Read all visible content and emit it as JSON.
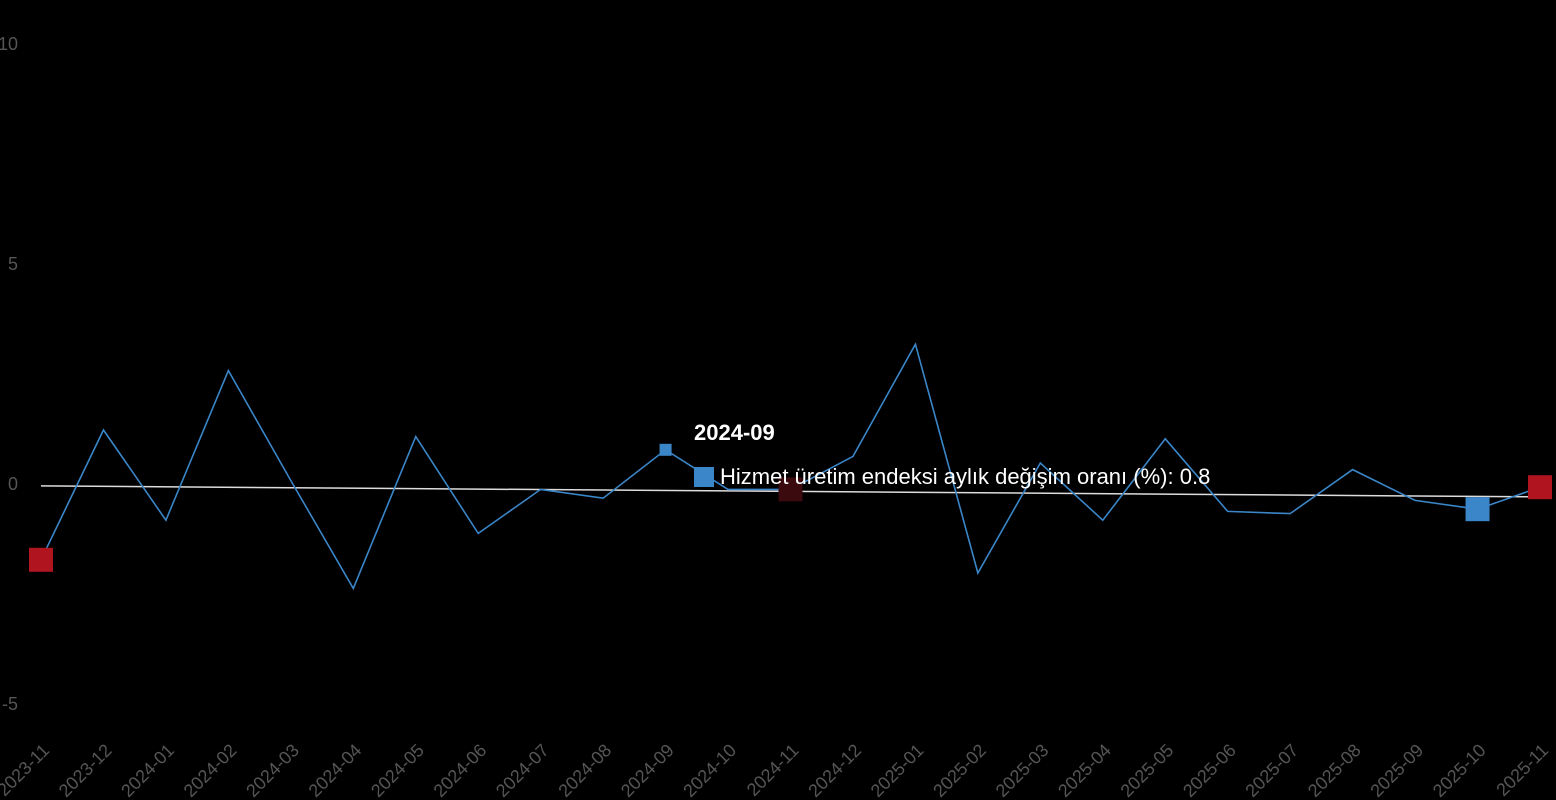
{
  "chart_data": {
    "type": "line",
    "categories": [
      "2023-11",
      "2023-12",
      "2024-01",
      "2024-02",
      "2024-03",
      "2024-04",
      "2024-05",
      "2024-06",
      "2024-07",
      "2024-08",
      "2024-09",
      "2024-10",
      "2024-11",
      "2024-12",
      "2025-01",
      "2025-02",
      "2025-03",
      "2025-04",
      "2025-05",
      "2025-06",
      "2025-07",
      "2025-08",
      "2025-09",
      "2025-10",
      "2025-11"
    ],
    "series": [
      {
        "name": "Hizmet üretim endeksi aylık değişim oranı (%)",
        "color": "#3a86c8",
        "values": [
          -1.7,
          1.25,
          -0.8,
          2.6,
          0.1,
          -2.35,
          1.1,
          -1.1,
          -0.1,
          -0.3,
          0.8,
          -0.1,
          -0.1,
          0.65,
          3.2,
          -2.0,
          0.5,
          -0.8,
          1.05,
          -0.6,
          -0.65,
          0.35,
          -0.35,
          -0.55,
          -0.05
        ]
      }
    ],
    "trend": {
      "color": "#dddddd",
      "values": [
        -0.02,
        -0.27
      ]
    },
    "markers": [
      {
        "index": 0,
        "color": "#b0141e"
      },
      {
        "index": 12,
        "color": "#3a0a0e"
      },
      {
        "index": 24,
        "color": "#b0141e"
      },
      {
        "index": 23,
        "color": "#3a86c8"
      }
    ],
    "tooltip": {
      "category_index": 10,
      "series_index": 0
    },
    "ylim": [
      -5.5,
      10
    ],
    "yticks": [
      10,
      5,
      0,
      -5
    ]
  }
}
